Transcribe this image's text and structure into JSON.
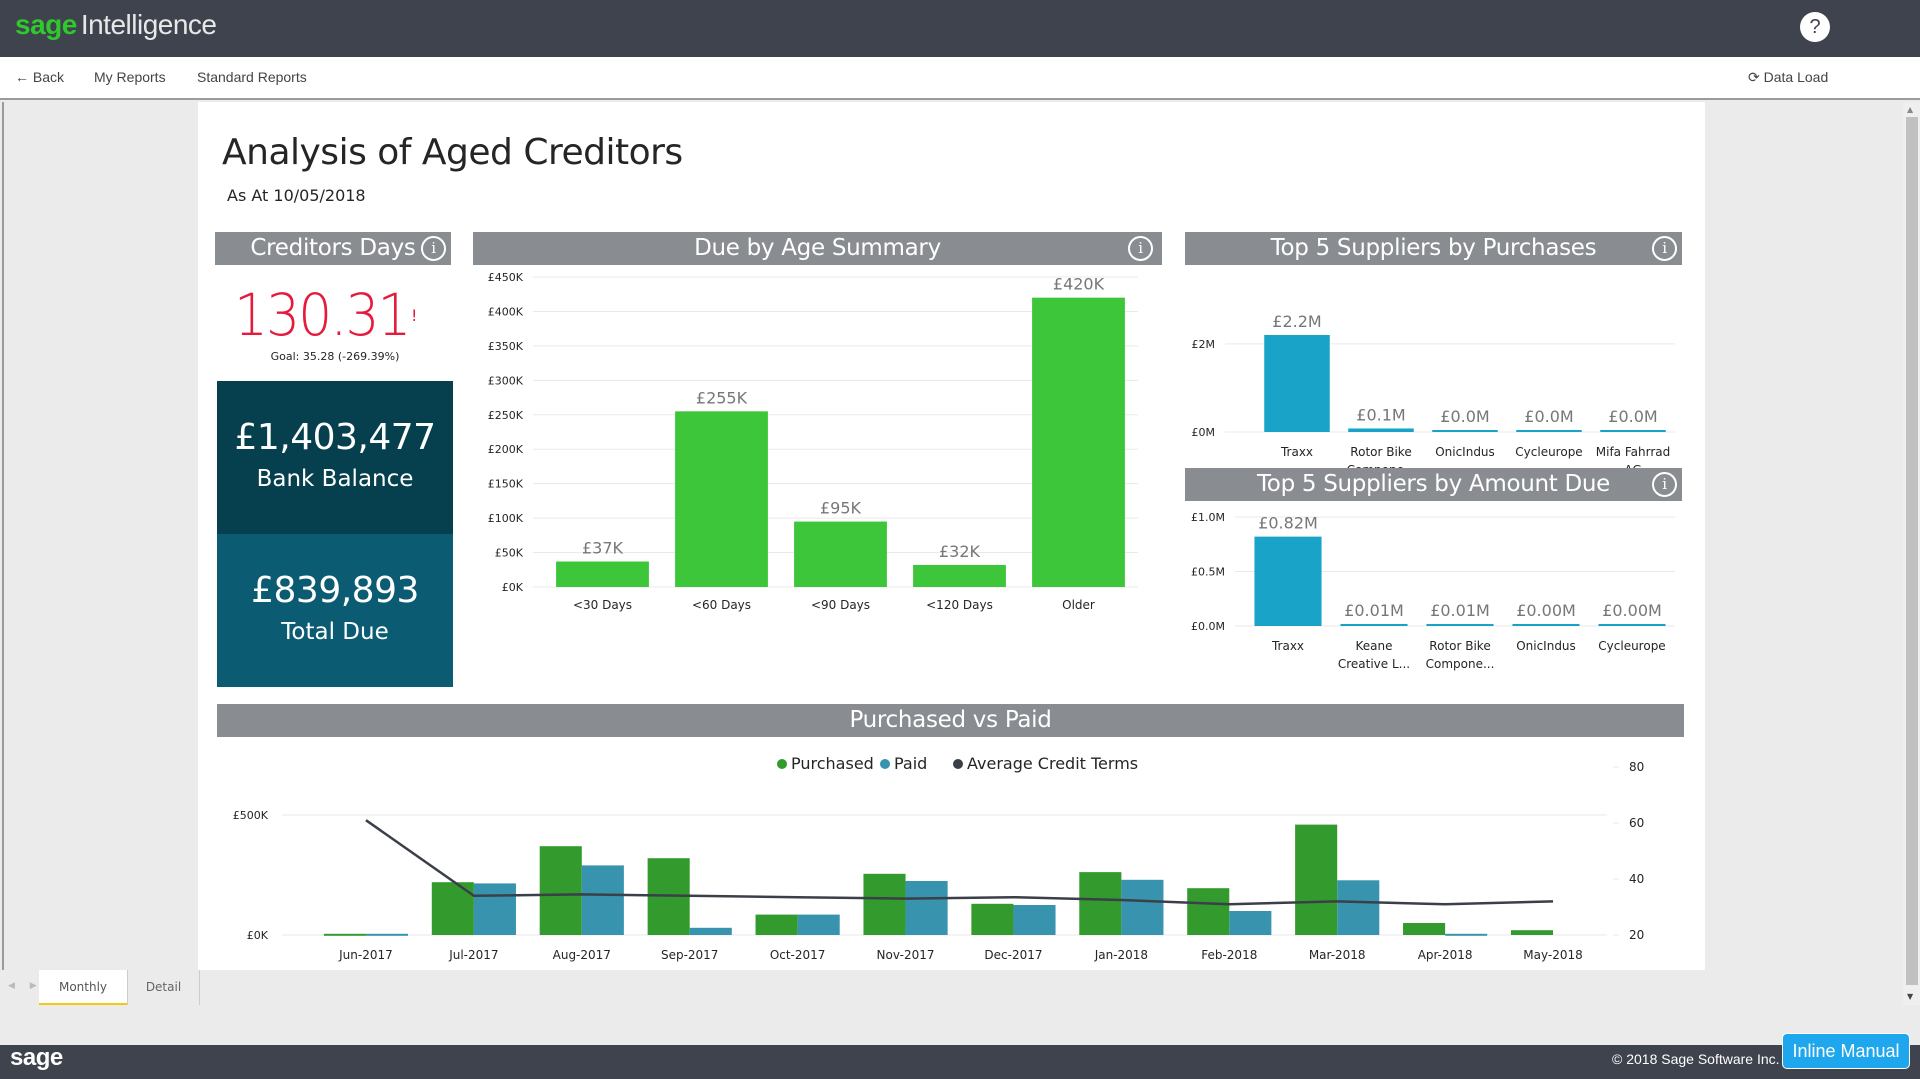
{
  "app": {
    "brand_sage": "sage",
    "brand_product": "Intelligence",
    "help_icon": "?"
  },
  "nav": {
    "back_icon": "←",
    "back": "Back",
    "my_reports": "My Reports",
    "standard_reports": "Standard Reports",
    "data_load_icon": "⟳",
    "data_load": "Data Load"
  },
  "report": {
    "title": "Analysis of Aged Creditors",
    "subtitle": "As At 10/05/2018",
    "info_icon": "i"
  },
  "creditors_days": {
    "header": "Creditors Days",
    "value": "130.31",
    "alert": "!",
    "goal": "Goal: 35.28 (-269.39%)"
  },
  "bank_balance": {
    "value": "£1,403,477",
    "label": "Bank Balance"
  },
  "total_due": {
    "value": "£839,893",
    "label": "Total Due"
  },
  "headers": {
    "due_by_age": "Due by Age Summary",
    "top5_purchases": "Top 5 Suppliers by Purchases",
    "top5_amount_due": "Top 5 Suppliers by Amount Due",
    "purchased_vs_paid": "Purchased vs Paid"
  },
  "colors": {
    "green_bar": "#3ec63a",
    "blue_bar": "#1aa3c9",
    "purchased": "#339a2e",
    "paid": "#3894ae",
    "line": "#3b3f48",
    "header_bg": "#898c91",
    "card_dark": "#063f4d",
    "card_mid": "#0b5c73",
    "kpi_red": "#e41b3c"
  },
  "chart_data": [
    {
      "id": "due_by_age",
      "type": "bar",
      "title": "Due by Age Summary",
      "categories": [
        "<30 Days",
        "<60 Days",
        "<90 Days",
        "<120 Days",
        "Older"
      ],
      "values": [
        37,
        255,
        95,
        32,
        420
      ],
      "data_labels": [
        "£37K",
        "£255K",
        "£95K",
        "£32K",
        "£420K"
      ],
      "yticks": [
        "£0K",
        "£50K",
        "£100K",
        "£150K",
        "£200K",
        "£250K",
        "£300K",
        "£350K",
        "£400K",
        "£450K"
      ],
      "ylim": [
        0,
        450
      ],
      "yunit": "£K",
      "grid": true
    },
    {
      "id": "top5_purchases",
      "type": "bar",
      "title": "Top 5 Suppliers by Purchases",
      "categories": [
        "Traxx",
        "Rotor Bike Compone...",
        "OnicIndus",
        "Cycleurope",
        "Mifa Fahrrad AG"
      ],
      "category_lines": [
        [
          "Traxx"
        ],
        [
          "Rotor Bike",
          "Compone..."
        ],
        [
          "OnicIndus"
        ],
        [
          "Cycleurope"
        ],
        [
          "Mifa Fahrrad",
          "AG"
        ]
      ],
      "values": [
        2.2,
        0.08,
        0.02,
        0.02,
        0.02
      ],
      "data_labels": [
        "£2.2M",
        "£0.1M",
        "£0.0M",
        "£0.0M",
        "£0.0M"
      ],
      "yticks": [
        "£0M",
        "£2M"
      ],
      "ylim": [
        0,
        2.2
      ],
      "yunit": "£M",
      "grid": true
    },
    {
      "id": "top5_amount_due",
      "type": "bar",
      "title": "Top 5 Suppliers by Amount Due",
      "categories": [
        "Traxx",
        "Keane Creative L...",
        "Rotor Bike Compone...",
        "OnicIndus",
        "Cycleurope"
      ],
      "category_lines": [
        [
          "Traxx"
        ],
        [
          "Keane",
          "Creative L..."
        ],
        [
          "Rotor Bike",
          "Compone..."
        ],
        [
          "OnicIndus"
        ],
        [
          "Cycleurope"
        ]
      ],
      "values": [
        0.82,
        0.01,
        0.01,
        0.004,
        0.004
      ],
      "data_labels": [
        "£0.82M",
        "£0.01M",
        "£0.01M",
        "£0.00M",
        "£0.00M"
      ],
      "yticks": [
        "£0.0M",
        "£0.5M",
        "£1.0M"
      ],
      "ylim": [
        0,
        1.0
      ],
      "yunit": "£M",
      "grid": true
    },
    {
      "id": "purchased_vs_paid",
      "type": "bar",
      "title": "Purchased vs Paid",
      "legend": [
        "Purchased",
        "Paid",
        "Average Credit Terms"
      ],
      "legend_position": "top-center",
      "categories": [
        "Jun-2017",
        "Jul-2017",
        "Aug-2017",
        "Sep-2017",
        "Oct-2017",
        "Nov-2017",
        "Dec-2017",
        "Jan-2018",
        "Feb-2018",
        "Mar-2018",
        "Apr-2018",
        "May-2018"
      ],
      "series": [
        {
          "name": "Purchased",
          "type": "bar",
          "axis": "left",
          "values": [
            5,
            220,
            370,
            320,
            85,
            255,
            130,
            262,
            195,
            460,
            50,
            20
          ]
        },
        {
          "name": "Paid",
          "type": "bar",
          "axis": "left",
          "values": [
            5,
            215,
            290,
            30,
            85,
            225,
            125,
            230,
            100,
            228,
            5,
            0
          ]
        },
        {
          "name": "Average Credit Terms",
          "type": "line",
          "axis": "right",
          "values": [
            61,
            34,
            34.5,
            34,
            33.5,
            33,
            33.5,
            32.5,
            31,
            32,
            31,
            32
          ]
        }
      ],
      "yticks_left": [
        "£0K",
        "£500K"
      ],
      "ylim_left": [
        0,
        500
      ],
      "yticks_right": [
        "20",
        "40",
        "60",
        "80"
      ],
      "ylim_right": [
        20,
        80
      ],
      "grid": true
    }
  ],
  "tabs": {
    "arrows": "◀ ▶",
    "items": [
      {
        "label": "Monthly",
        "active": true
      },
      {
        "label": "Detail",
        "active": false
      }
    ]
  },
  "footer": {
    "logo": "sage",
    "copyright": "© 2018 Sage Software Inc.",
    "inline_manual": "Inline Manual"
  }
}
